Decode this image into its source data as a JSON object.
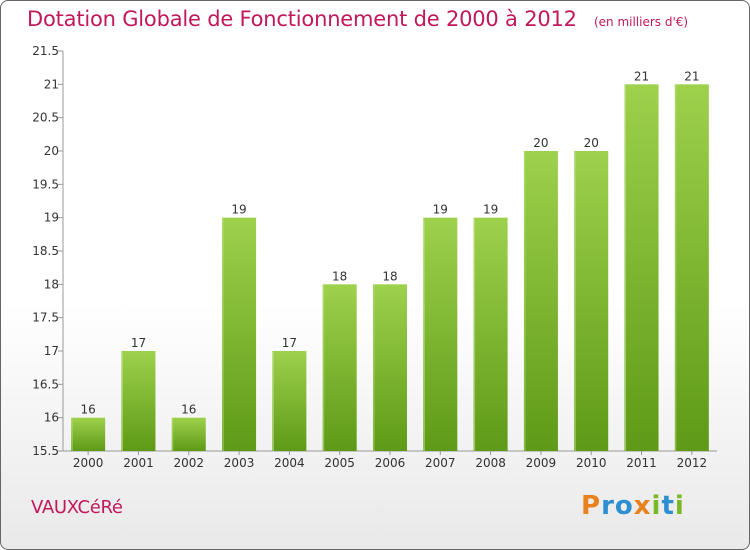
{
  "chart_data": {
    "type": "bar",
    "title": "Dotation Globale de Fonctionnement de 2000 à 2012",
    "unit_note": "(en milliers d'€)",
    "categories": [
      "2000",
      "2001",
      "2002",
      "2003",
      "2004",
      "2005",
      "2006",
      "2007",
      "2008",
      "2009",
      "2010",
      "2011",
      "2012"
    ],
    "values": [
      16,
      17,
      16,
      19,
      17,
      18,
      18,
      19,
      19,
      20,
      20,
      21,
      21
    ],
    "value_labels": [
      "16",
      "17",
      "16",
      "19",
      "17",
      "18",
      "18",
      "19",
      "19",
      "20",
      "20",
      "21",
      "21"
    ],
    "ylim": [
      15.5,
      21.5
    ],
    "yticks": [
      "15.5",
      "16",
      "16.5",
      "17",
      "17.5",
      "18",
      "18.5",
      "19",
      "19.5",
      "20",
      "20.5",
      "21",
      "21.5"
    ],
    "grid": false,
    "bar_color_top": "#9ed14c",
    "bar_color_bottom": "#5e9a17"
  },
  "commune": "VAUXCéRé",
  "logo": {
    "text": "Proxiti",
    "letters": [
      "P",
      "r",
      "o",
      "x",
      "i",
      "t",
      "i"
    ],
    "colors": [
      "#e8821e",
      "#2d8fd1",
      "#2d8fd1",
      "#e8821e",
      "#7ab828",
      "#2d8fd1",
      "#7ab828"
    ]
  }
}
